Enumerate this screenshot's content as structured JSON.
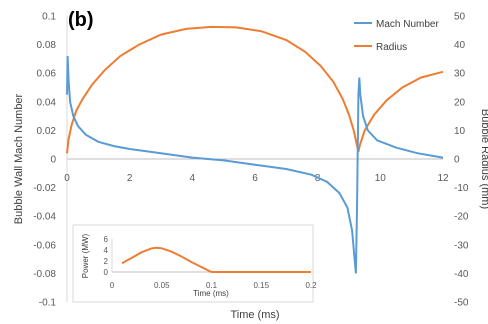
{
  "chart_data": {
    "type": "line",
    "panel_label": "(b)",
    "xlabel": "Time (ms)",
    "ylabel_left": "Bubble Wall Mach Number",
    "ylabel_right": "Bubble Radius (mm)",
    "xlim": [
      0,
      12
    ],
    "ylim_left": [
      -0.1,
      0.1
    ],
    "ylim_right": [
      -50,
      50
    ],
    "x_ticks": [
      "0",
      "2",
      "4",
      "6",
      "8",
      "10",
      "12"
    ],
    "y_left_ticks": [
      "0.1",
      "0.08",
      "0.06",
      "0.04",
      "0.02",
      "0",
      "-0.02",
      "-0.04",
      "-0.06",
      "-0.08",
      "-0.1"
    ],
    "y_right_ticks": [
      "50",
      "40",
      "30",
      "20",
      "10",
      "0",
      "-10",
      "-20",
      "-30",
      "-40",
      "-50"
    ],
    "grid": false,
    "legend_position": "top-right",
    "series": [
      {
        "name": "Mach Number",
        "color": "#5b9bd5",
        "axis": "left",
        "points": [
          [
            0.0,
            0.045
          ],
          [
            0.02,
            0.072
          ],
          [
            0.05,
            0.055
          ],
          [
            0.1,
            0.04
          ],
          [
            0.2,
            0.03
          ],
          [
            0.35,
            0.023
          ],
          [
            0.6,
            0.017
          ],
          [
            1.0,
            0.012
          ],
          [
            1.5,
            0.009
          ],
          [
            2.0,
            0.007
          ],
          [
            3.0,
            0.004
          ],
          [
            4.0,
            0.001
          ],
          [
            5.0,
            -0.001
          ],
          [
            6.0,
            -0.004
          ],
          [
            7.0,
            -0.007
          ],
          [
            7.8,
            -0.011
          ],
          [
            8.3,
            -0.016
          ],
          [
            8.7,
            -0.024
          ],
          [
            8.95,
            -0.034
          ],
          [
            9.1,
            -0.05
          ],
          [
            9.18,
            -0.07
          ],
          [
            9.22,
            -0.08
          ],
          [
            9.26,
            -0.03
          ],
          [
            9.3,
            0.045
          ],
          [
            9.33,
            0.057
          ],
          [
            9.36,
            0.045
          ],
          [
            9.45,
            0.03
          ],
          [
            9.6,
            0.02
          ],
          [
            9.9,
            0.013
          ],
          [
            10.5,
            0.008
          ],
          [
            11.2,
            0.004
          ],
          [
            12.0,
            0.001
          ]
        ]
      },
      {
        "name": "Radius",
        "color": "#ed7d31",
        "axis": "right",
        "points": [
          [
            0.0,
            2
          ],
          [
            0.05,
            7
          ],
          [
            0.15,
            12
          ],
          [
            0.3,
            17
          ],
          [
            0.5,
            21
          ],
          [
            0.8,
            26
          ],
          [
            1.2,
            31
          ],
          [
            1.7,
            36
          ],
          [
            2.3,
            40
          ],
          [
            3.0,
            43.5
          ],
          [
            3.8,
            45.5
          ],
          [
            4.6,
            46.2
          ],
          [
            5.4,
            46
          ],
          [
            6.2,
            44.7
          ],
          [
            7.0,
            41.6
          ],
          [
            7.6,
            37.5
          ],
          [
            8.1,
            32.5
          ],
          [
            8.5,
            27
          ],
          [
            8.8,
            21
          ],
          [
            9.0,
            15.5
          ],
          [
            9.15,
            10
          ],
          [
            9.25,
            5
          ],
          [
            9.3,
            2.5
          ],
          [
            9.35,
            5
          ],
          [
            9.5,
            10
          ],
          [
            9.8,
            15.5
          ],
          [
            10.2,
            20.5
          ],
          [
            10.7,
            25
          ],
          [
            11.3,
            28.5
          ],
          [
            12.0,
            30.5
          ]
        ]
      }
    ],
    "inset": {
      "type": "line",
      "xlabel": "Time (ms)",
      "ylabel": "Power (MW)",
      "xlim": [
        0,
        0.2
      ],
      "ylim": [
        0,
        6
      ],
      "x_ticks": [
        "0",
        "0.05",
        "0.1",
        "0.15",
        "0.2"
      ],
      "y_ticks": [
        "6",
        "4",
        "2",
        "0"
      ],
      "series": [
        {
          "name": "Power",
          "color": "#ed7d31",
          "points": [
            [
              0.01,
              1.6
            ],
            [
              0.02,
              2.6
            ],
            [
              0.03,
              3.6
            ],
            [
              0.04,
              4.3
            ],
            [
              0.045,
              4.4
            ],
            [
              0.05,
              4.3
            ],
            [
              0.06,
              3.7
            ],
            [
              0.07,
              2.8
            ],
            [
              0.08,
              1.8
            ],
            [
              0.09,
              0.9
            ],
            [
              0.1,
              0.0
            ],
            [
              0.12,
              0.0
            ],
            [
              0.2,
              0.0
            ]
          ]
        }
      ]
    }
  }
}
